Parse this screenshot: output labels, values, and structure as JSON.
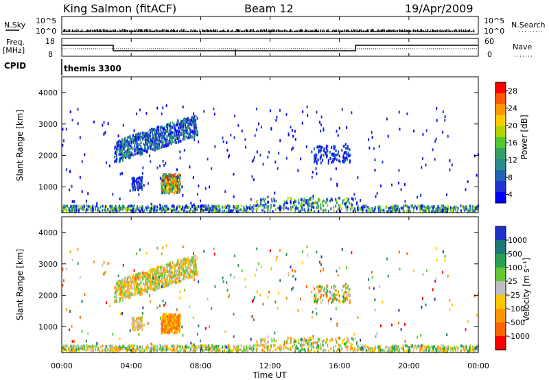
{
  "header": {
    "station": "King Salmon (fitACF)",
    "beam": "Beam 12",
    "date": "19/Apr/2009"
  },
  "top_panels": {
    "nsky_label": "N.Sky",
    "nsky_ticks": [
      "10^5",
      "10^0"
    ],
    "nsearch_label": "N.Search",
    "nsearch_ticks": [
      "10^5",
      "10^0"
    ],
    "freq_label_line1": "Freq.",
    "freq_label_line2": "[MHz]",
    "freq_ticks": [
      "18",
      "8"
    ],
    "nave_label": "Nave",
    "nave_ticks": [
      "60",
      "0"
    ],
    "cpid_label": "CPID",
    "cpid_value": "themis 3300"
  },
  "power_colorbar": {
    "label": "Power [dB]",
    "ticks": [
      "28",
      "24",
      "20",
      "16",
      "12",
      "8",
      "4"
    ],
    "colors": [
      "#ff0000",
      "#ff5a00",
      "#ff9900",
      "#ffcc00",
      "#b4d200",
      "#50c832",
      "#32a064",
      "#288c8c",
      "#1e64b4",
      "#1e32d2",
      "#0000ff"
    ]
  },
  "velocity_colorbar": {
    "label": "Velocity [m s⁻¹]",
    "ticks": [
      "1000",
      "500",
      "100",
      "25",
      "-25",
      "-100",
      "-500",
      "-1000"
    ],
    "colors": [
      "#1e32c8",
      "#1e7878",
      "#28a050",
      "#64c832",
      "#bebebe",
      "#ffc800",
      "#ff9600",
      "#ff6400",
      "#ff0000"
    ]
  },
  "chart_data": [
    {
      "type": "heatmap",
      "name": "power",
      "ylabel": "Slant Range [km]",
      "yticks": [
        1000,
        2000,
        3000,
        4000
      ],
      "ylim": [
        180,
        4500
      ],
      "xlim": [
        0,
        24
      ],
      "blobs": [
        {
          "t": [
            3.0,
            7.8
          ],
          "r": [
            1700,
            2800
          ],
          "value": "mixed 4-16 dB"
        },
        {
          "t": [
            5.7,
            6.8
          ],
          "r": [
            800,
            1400
          ],
          "value": "up to 28 dB"
        },
        {
          "t": [
            14.5,
            16.5
          ],
          "r": [
            1800,
            2300
          ],
          "value": "4-8 dB"
        },
        {
          "t": [
            0,
            24
          ],
          "r": [
            180,
            500
          ],
          "value": "4-16 dB"
        }
      ]
    },
    {
      "type": "heatmap",
      "name": "velocity",
      "ylabel": "Slant Range [km]",
      "yticks": [
        1000,
        2000,
        3000,
        4000
      ],
      "ylim": [
        180,
        4500
      ],
      "xlim": [
        0,
        24
      ],
      "xlabel": "Time UT",
      "xtick_labels": [
        "00:00",
        "04:00",
        "08:00",
        "12:00",
        "16:00",
        "20:00",
        "00:00"
      ],
      "blobs": [
        {
          "t": [
            3.0,
            7.8
          ],
          "r": [
            1700,
            2800
          ],
          "value": "-25 to 25 m/s, some -100"
        },
        {
          "t": [
            5.7,
            6.8
          ],
          "r": [
            800,
            1400
          ],
          "value": "-100 to -500 m/s"
        },
        {
          "t": [
            14.5,
            16.5
          ],
          "r": [
            1800,
            2300
          ],
          "value": "mixed"
        }
      ]
    }
  ]
}
